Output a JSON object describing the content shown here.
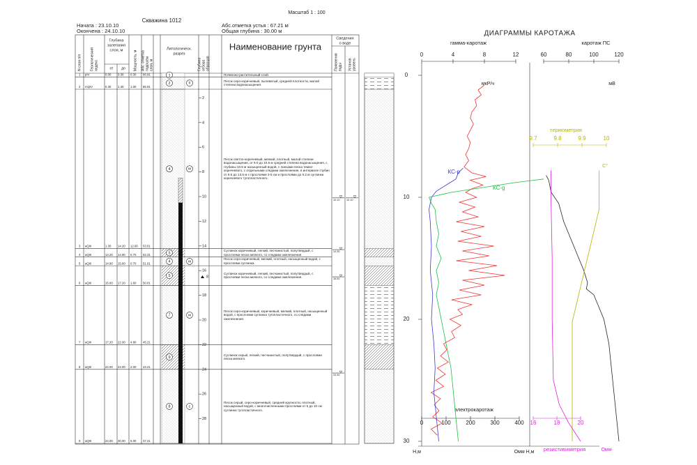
{
  "header": {
    "scale": "Масштаб 1 : 100",
    "well": "Скважина 1012",
    "start": "Начата : 23.10.10",
    "end": "Окончена : 24.10.10",
    "elevation": "Абс.отметка устья : 67.21 м",
    "total_depth": "Общая глубина : 30.00 м"
  },
  "table": {
    "columns": {
      "num": [
        "N слоя п/п"
      ],
      "index": [
        "Геологический",
        "индекс"
      ],
      "depth": [
        "Глубина",
        "залегания",
        "слоя, м"
      ],
      "from": "от",
      "to": "до",
      "thickness": [
        "Мощность, м"
      ],
      "elevation": [
        "Абс. отметка",
        "подошвы",
        "слоя, м"
      ],
      "lithology": [
        "Литологическ.",
        "разрез"
      ],
      "samples": [
        "Глубина",
        "отбора",
        "образцов"
      ],
      "name": "Наименование грунта",
      "water": [
        "Сведения",
        "о воде"
      ],
      "water_appear": [
        "Появления",
        "воды"
      ],
      "water_level": [
        "Установ.",
        "уровень"
      ]
    },
    "rows": [
      {
        "num": "1",
        "index": "pIV",
        "from": "0.00",
        "to": "0.30",
        "thickness": "0.30",
        "elevation": "66.91",
        "description": "Почвенно-растительный слой.",
        "lith": "1"
      },
      {
        "num": "2",
        "index": "mQIV",
        "from": "0.30",
        "to": "1.30",
        "thickness": "1.00",
        "elevation": "65.91",
        "description": "Песок серо-коричневый, пылеватый, средней плотности, малой степени водонасыщения.",
        "lith": "2",
        "lith_letter": "п"
      },
      {
        "num": "3",
        "index": "aQIII",
        "from": "1.30",
        "to": "14.20",
        "thickness": "12.90",
        "elevation": "53.01",
        "description": "Песок светло-коричневый, мелкий, плотный, малой степени водонасыщения, от 9.0 до 10.5 м средней степени водонасыщения, с глубины 10.5 м насыщенный водой, с линзами песка темно-коричневого, с отдельными следами ожелезнения, в интервале глубин от 8.5 до 13.5 м с прослоями 3-5 см и прослоями до 0.2 м суглинка коричневого тугопластичного.",
        "lith": "4",
        "lith_letter": "м"
      },
      {
        "num": "4",
        "index": "aQIII",
        "from": "14.20",
        "to": "14.90",
        "thickness": "0.70",
        "elevation": "52.31",
        "description": "Суглинок коричневый, легкий, песчанистый, полутвердый, с прослоями песка мелкого, со следами ожелезнения.",
        "lith": "5"
      },
      {
        "num": "5",
        "index": "aQIII",
        "from": "14.90",
        "to": "15.60",
        "thickness": "0.70",
        "elevation": "51.61",
        "description": "Песок серо-коричневый, мелкий, плотный, насыщенный водой, с прослоями суглинка.",
        "lith": "4",
        "lith_letter": "м"
      },
      {
        "num": "6",
        "index": "aQIII",
        "from": "15.60",
        "to": "17.20",
        "thickness": "1.60",
        "elevation": "50.01",
        "description": "Суглинок коричневый, легкий, песчанистый, полутвердый, с прослоями песка мелкого, со следами ожелезнения.",
        "lith": "5"
      },
      {
        "num": "7",
        "index": "aQIII",
        "from": "17.20",
        "to": "22.00",
        "thickness": "4.80",
        "elevation": "45.21",
        "description": "Песок серо-коричневый, коричневый, мелкий, плотный, насыщенный водой, с прослоями суглинка тугопластичного, со следами ожелезнения.",
        "lith": "7",
        "lith_letter": "м"
      },
      {
        "num": "8",
        "index": "aQIII",
        "from": "22.00",
        "to": "24.00",
        "thickness": "2.00",
        "elevation": "43.21",
        "description": "Суглинок серый, легкий, песчанистый, полутвердый, с прослоями песка мелкого.",
        "lith": "9"
      },
      {
        "num": "9",
        "index": "aQIII",
        "from": "24.00",
        "to": "30.00",
        "thickness": "6.00",
        "elevation": "37.21",
        "description": "Песок серый, серо-коричневый, средней крупности, плотный, насыщенный водой, с многочисленными прослоями от 5 до 10 см суглинка тугопластичного.",
        "lith": "8",
        "lith_letter": "с"
      }
    ],
    "depth_ticks": [
      2,
      4,
      6,
      8,
      10,
      12,
      14,
      16,
      18,
      20,
      22,
      24,
      26,
      28
    ],
    "sample": {
      "value": 16.5,
      "label": "8"
    },
    "water_appear": [
      {
        "value": 10.1,
        "label": "10.10"
      },
      {
        "value": 14.3,
        "label": "14.30"
      },
      {
        "value": 16.5,
        "label": "16.50"
      },
      {
        "value": 24.3,
        "label": "24.30"
      }
    ],
    "water_level": [
      {
        "value": 10.1,
        "label": "10.10"
      }
    ]
  },
  "logging": {
    "title": "ДИАГРАММЫ КАРОТАЖА",
    "depth_label": "Н,м",
    "bottom_label": "Омм Н,м",
    "depth_lim": [
      0,
      30
    ],
    "depth_ticks": [
      0,
      10,
      20,
      30
    ],
    "axes": {
      "gamma": {
        "label": "гамма-каротаж",
        "lim": [
          0,
          12
        ],
        "ticks": [
          0,
          4,
          8,
          12
        ],
        "unit": "мкР/ч"
      },
      "sp": {
        "label": "каротаж ПС",
        "lim": [
          60,
          120
        ],
        "ticks": [
          60,
          80,
          100,
          120
        ],
        "unit": "мВ"
      },
      "thermo": {
        "label": "термометрия",
        "lim": [
          9.7,
          10
        ],
        "ticks": [
          9.7,
          9.8,
          9.9,
          10
        ],
        "unit": "С°",
        "color": "#b5b500"
      },
      "electro": {
        "label": "электрокаротаж",
        "lim": [
          0,
          400
        ],
        "ticks": [
          0,
          100,
          200,
          300,
          400
        ]
      },
      "resist": {
        "label": "резистивиметрия",
        "lim": [
          16,
          20
        ],
        "ticks": [
          16,
          18,
          20
        ],
        "unit": "Омм",
        "color": "#e01ee0"
      }
    },
    "curves": [
      {
        "axis": "gamma",
        "color": "#f03030",
        "depth": [
          0.8,
          1.2,
          1.6,
          2,
          2.5,
          3,
          3.5,
          4,
          4.5,
          5,
          5.5,
          6,
          6.5,
          7,
          7.5,
          8,
          8.3,
          8.6,
          9,
          9.3,
          9.6,
          10,
          10.4,
          10.8,
          11.2,
          11.6,
          12,
          12.4,
          12.8,
          13.2,
          13.6,
          14,
          14.4,
          14.8,
          15.2,
          15.6,
          16,
          16.4,
          16.8,
          17.2,
          17.6,
          18,
          18.4,
          18.8,
          19.2,
          19.6,
          20,
          20.5,
          21,
          21.5,
          22,
          22.5,
          23,
          23.5,
          24,
          24.5,
          25,
          25.5,
          26,
          26.5,
          27,
          27.5,
          28,
          28.5,
          29,
          29.5
        ],
        "values": [
          8,
          7.2,
          7.6,
          6.8,
          7,
          6.4,
          6.2,
          6.6,
          6.2,
          5.8,
          6.2,
          6,
          5.6,
          6,
          5.4,
          6.4,
          8.2,
          6.2,
          7.8,
          6.4,
          5.6,
          7,
          4.8,
          6.8,
          5.2,
          7.2,
          4.4,
          8,
          5,
          7.6,
          4.6,
          9.2,
          5.2,
          8.6,
          4.4,
          9.6,
          6,
          10.6,
          5.2,
          8,
          4.8,
          7.6,
          3.8,
          6.4,
          4.6,
          5.2,
          3.6,
          5,
          3.8,
          4.2,
          2.8,
          3.2,
          2.4,
          3.4,
          2,
          3,
          1.8,
          2.8,
          1.2,
          2.4,
          1.6,
          2.2,
          1.4,
          2.6,
          1.2,
          2
        ]
      },
      {
        "axis": "electro",
        "name": "КС-р",
        "color": "#3a3acc",
        "depth": [
          7.6,
          8,
          8.5,
          9,
          9.5,
          10,
          11,
          12,
          14,
          16,
          18,
          20,
          22,
          24,
          26,
          28,
          30
        ],
        "values": [
          170,
          150,
          140,
          100,
          60,
          40,
          30,
          35,
          40,
          35,
          45,
          40,
          50,
          55,
          50,
          60,
          70
        ]
      },
      {
        "axis": "electro",
        "name": "КС-g",
        "color": "#18c040",
        "depth": [
          8.5,
          8.8,
          9.2,
          9.6,
          10,
          10.5,
          11,
          12,
          13,
          14,
          15,
          16,
          17,
          18,
          19,
          20,
          22,
          24,
          26,
          28,
          30
        ],
        "values": [
          500,
          380,
          250,
          120,
          30,
          40,
          55,
          60,
          70,
          60,
          80,
          60,
          70,
          60,
          70,
          80,
          100,
          120,
          130,
          140,
          150
        ]
      },
      {
        "axis": "sp",
        "color": "#222222",
        "depth": [
          8.2,
          8.6,
          9.6,
          10.5,
          12,
          13,
          14,
          15,
          16,
          17,
          17.5,
          18,
          19,
          20,
          22,
          24,
          26,
          28,
          30
        ],
        "values": [
          62,
          64,
          66,
          72,
          76,
          80,
          84,
          88,
          92,
          95,
          94,
          100,
          104,
          108,
          112,
          114,
          116,
          118,
          120
        ]
      },
      {
        "axis": "thermo",
        "color": "#b5b500",
        "depth": [
          7.8,
          11,
          20.2,
          30
        ],
        "values": [
          9.97,
          9.97,
          9.86,
          9.86
        ]
      },
      {
        "axis": "resist",
        "color": "#e01ee0",
        "depth": [
          7.8,
          10,
          15,
          20,
          25,
          27,
          28.5,
          30
        ],
        "values": [
          17.5,
          17.5,
          17.6,
          17.6,
          17.7,
          18.2,
          19,
          20
        ]
      }
    ]
  }
}
